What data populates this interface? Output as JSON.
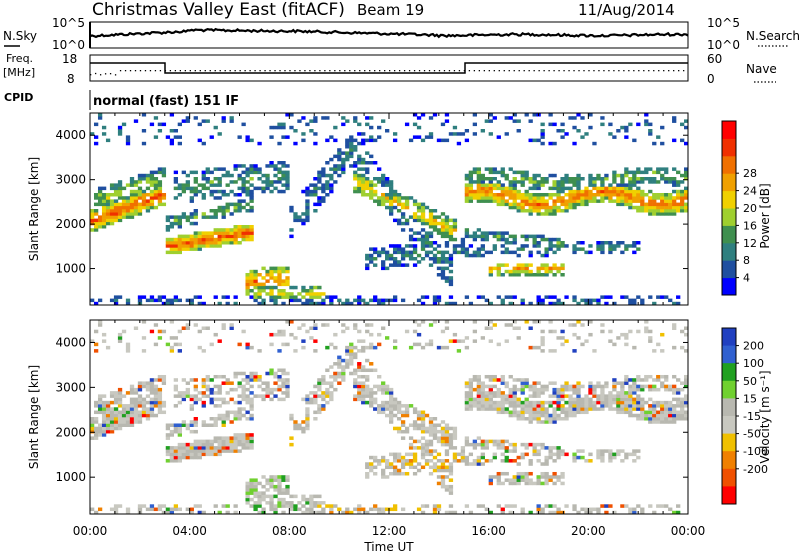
{
  "header": {
    "title": "Christmas Valley East (fitACF)",
    "beam": "Beam 19",
    "date": "11/Aug/2014"
  },
  "noise_panel": {
    "left_label": "N.Sky",
    "right_label": "N.Search",
    "left_ticks": [
      "10^5",
      "10^0"
    ],
    "right_ticks": [
      "10^5",
      "10^0"
    ]
  },
  "freq_panel": {
    "left_label_line1": "Freq.",
    "left_label_line2": "[MHz]",
    "right_label": "Nave",
    "left_ticks": [
      "18",
      "8"
    ],
    "right_ticks": [
      "60",
      "0"
    ]
  },
  "cpid_panel": {
    "label": "CPID",
    "text": "normal (fast) 151 IF"
  },
  "x_axis": {
    "label": "Time UT",
    "ticks": [
      "00:00",
      "04:00",
      "08:00",
      "12:00",
      "16:00",
      "20:00",
      "00:00"
    ]
  },
  "colors": {
    "power_scale": [
      "#0000ff",
      "#1f4fa0",
      "#2f7f7f",
      "#3f8f4f",
      "#9fcf2f",
      "#f0d000",
      "#f0a000",
      "#f07000",
      "#f03000",
      "#ff0000"
    ],
    "velocity_scale": [
      "#2040c0",
      "#3060d0",
      "#20a020",
      "#70d030",
      "#b8b8b0",
      "#c8c8c0",
      "#f0c000",
      "#f08000",
      "#f05000",
      "#ff0000"
    ]
  },
  "chart_data": [
    {
      "type": "heatmap",
      "name": "power",
      "ylabel": "Slant Range [km]",
      "yticks": [
        "1000",
        "2000",
        "3000",
        "4000"
      ],
      "ylim": [
        180,
        4500
      ],
      "xlim_hours": [
        0,
        24
      ],
      "colorbar": {
        "label": "Power [dB]",
        "ticks": [
          "4",
          "8",
          "12",
          "16",
          "20",
          "24",
          "28"
        ]
      }
    },
    {
      "type": "heatmap",
      "name": "velocity",
      "ylabel": "Slant Range [km]",
      "yticks": [
        "1000",
        "2000",
        "3000",
        "4000"
      ],
      "ylim": [
        180,
        4500
      ],
      "xlim_hours": [
        0,
        24
      ],
      "colorbar": {
        "label": "Velocity [m s⁻¹]",
        "ticks": [
          "200",
          "100",
          "50",
          "15",
          "-15",
          "-50",
          "-100",
          "-200"
        ]
      }
    }
  ]
}
